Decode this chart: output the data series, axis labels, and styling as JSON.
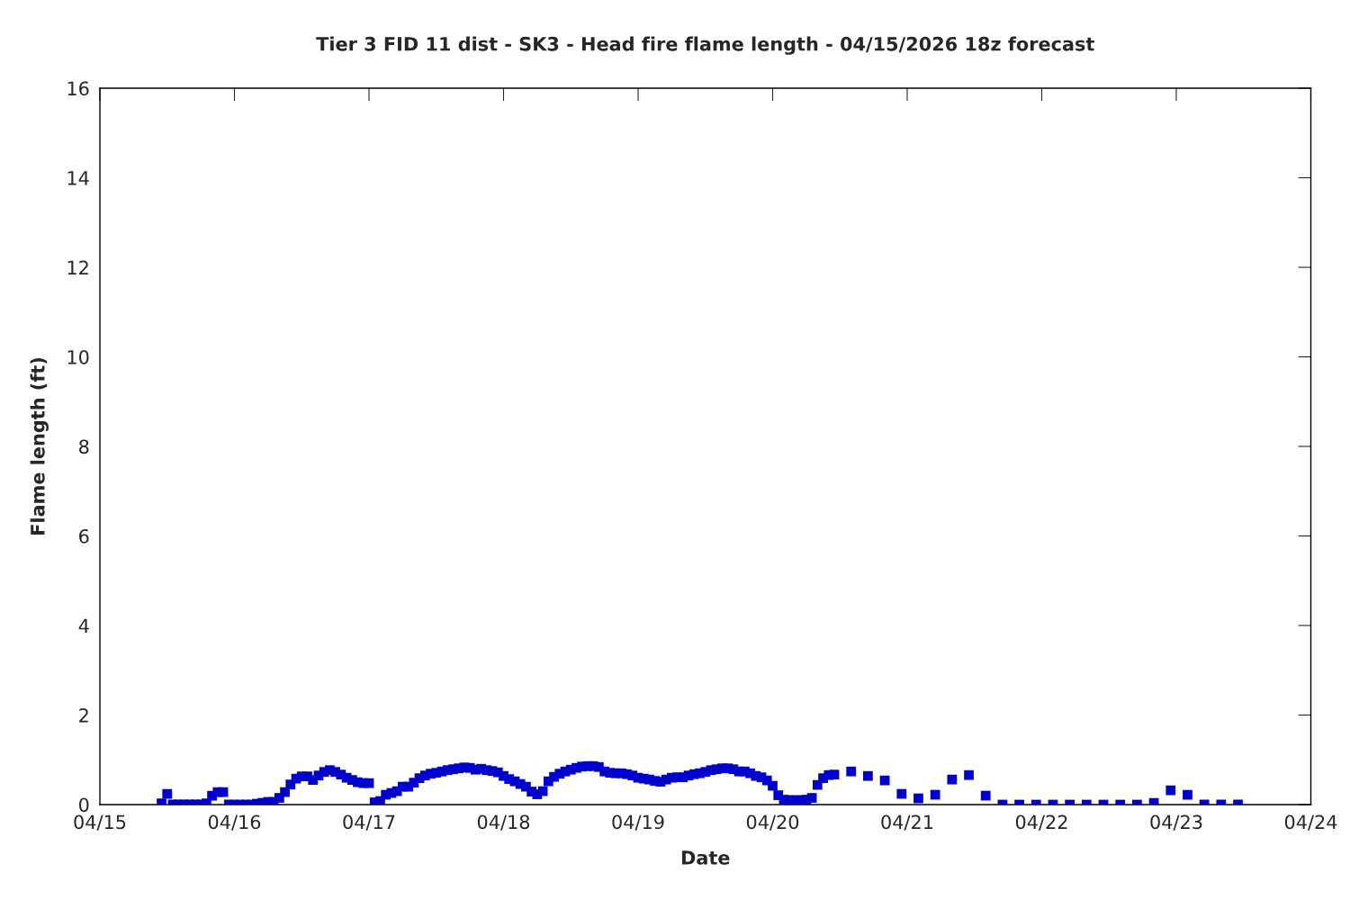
{
  "chart_data": {
    "type": "scatter",
    "title": "Tier 3 FID 11 dist - SK3 - Head fire flame length - 04/15/2026 18z forecast",
    "xlabel": "Date",
    "ylabel": "Flame length (ft)",
    "marker": "square",
    "grid": false,
    "legend": false,
    "xlim": [
      "2026-04-15",
      "2026-04-24"
    ],
    "xticks": [
      {
        "value": "2026-04-15",
        "label": "04/15"
      },
      {
        "value": "2026-04-16",
        "label": "04/16"
      },
      {
        "value": "2026-04-17",
        "label": "04/17"
      },
      {
        "value": "2026-04-18",
        "label": "04/18"
      },
      {
        "value": "2026-04-19",
        "label": "04/19"
      },
      {
        "value": "2026-04-20",
        "label": "04/20"
      },
      {
        "value": "2026-04-21",
        "label": "04/21"
      },
      {
        "value": "2026-04-22",
        "label": "04/22"
      },
      {
        "value": "2026-04-23",
        "label": "04/23"
      },
      {
        "value": "2026-04-24",
        "label": "04/24"
      }
    ],
    "ylim": [
      0,
      16
    ],
    "yticks": [
      0,
      2,
      4,
      6,
      8,
      10,
      12,
      14,
      16
    ],
    "series": [
      {
        "color": "#0000cc",
        "x": [
          "2026-04-15T11:00",
          "2026-04-15T12:00",
          "2026-04-15T13:00",
          "2026-04-15T14:00",
          "2026-04-15T15:00",
          "2026-04-15T16:00",
          "2026-04-15T17:00",
          "2026-04-15T18:00",
          "2026-04-15T19:00",
          "2026-04-15T20:00",
          "2026-04-15T21:00",
          "2026-04-15T22:00",
          "2026-04-15T23:00",
          "2026-04-16T00:00",
          "2026-04-16T01:00",
          "2026-04-16T02:00",
          "2026-04-16T03:00",
          "2026-04-16T04:00",
          "2026-04-16T05:00",
          "2026-04-16T06:00",
          "2026-04-16T07:00",
          "2026-04-16T08:00",
          "2026-04-16T09:00",
          "2026-04-16T10:00",
          "2026-04-16T11:00",
          "2026-04-16T12:00",
          "2026-04-16T13:00",
          "2026-04-16T14:00",
          "2026-04-16T15:00",
          "2026-04-16T16:00",
          "2026-04-16T17:00",
          "2026-04-16T18:00",
          "2026-04-16T19:00",
          "2026-04-16T20:00",
          "2026-04-16T21:00",
          "2026-04-16T22:00",
          "2026-04-16T23:00",
          "2026-04-17T00:00",
          "2026-04-17T01:00",
          "2026-04-17T02:00",
          "2026-04-17T03:00",
          "2026-04-17T04:00",
          "2026-04-17T05:00",
          "2026-04-17T06:00",
          "2026-04-17T07:00",
          "2026-04-17T08:00",
          "2026-04-17T09:00",
          "2026-04-17T10:00",
          "2026-04-17T11:00",
          "2026-04-17T12:00",
          "2026-04-17T13:00",
          "2026-04-17T14:00",
          "2026-04-17T15:00",
          "2026-04-17T16:00",
          "2026-04-17T17:00",
          "2026-04-17T18:00",
          "2026-04-17T19:00",
          "2026-04-17T20:00",
          "2026-04-17T21:00",
          "2026-04-17T22:00",
          "2026-04-17T23:00",
          "2026-04-18T00:00",
          "2026-04-18T01:00",
          "2026-04-18T02:00",
          "2026-04-18T03:00",
          "2026-04-18T04:00",
          "2026-04-18T05:00",
          "2026-04-18T06:00",
          "2026-04-18T07:00",
          "2026-04-18T08:00",
          "2026-04-18T09:00",
          "2026-04-18T10:00",
          "2026-04-18T11:00",
          "2026-04-18T12:00",
          "2026-04-18T13:00",
          "2026-04-18T14:00",
          "2026-04-18T15:00",
          "2026-04-18T16:00",
          "2026-04-18T17:00",
          "2026-04-18T18:00",
          "2026-04-18T19:00",
          "2026-04-18T20:00",
          "2026-04-18T21:00",
          "2026-04-18T22:00",
          "2026-04-18T23:00",
          "2026-04-19T00:00",
          "2026-04-19T01:00",
          "2026-04-19T02:00",
          "2026-04-19T03:00",
          "2026-04-19T04:00",
          "2026-04-19T05:00",
          "2026-04-19T06:00",
          "2026-04-19T07:00",
          "2026-04-19T08:00",
          "2026-04-19T09:00",
          "2026-04-19T10:00",
          "2026-04-19T11:00",
          "2026-04-19T12:00",
          "2026-04-19T13:00",
          "2026-04-19T14:00",
          "2026-04-19T15:00",
          "2026-04-19T16:00",
          "2026-04-19T17:00",
          "2026-04-19T18:00",
          "2026-04-19T19:00",
          "2026-04-19T20:00",
          "2026-04-19T21:00",
          "2026-04-19T22:00",
          "2026-04-19T23:00",
          "2026-04-20T00:00",
          "2026-04-20T01:00",
          "2026-04-20T02:00",
          "2026-04-20T03:00",
          "2026-04-20T04:00",
          "2026-04-20T05:00",
          "2026-04-20T06:00",
          "2026-04-20T07:00",
          "2026-04-20T08:00",
          "2026-04-20T09:00",
          "2026-04-20T10:00",
          "2026-04-20T11:00",
          "2026-04-20T14:00",
          "2026-04-20T17:00",
          "2026-04-20T20:00",
          "2026-04-20T23:00",
          "2026-04-21T02:00",
          "2026-04-21T05:00",
          "2026-04-21T08:00",
          "2026-04-21T11:00",
          "2026-04-21T14:00",
          "2026-04-21T17:00",
          "2026-04-21T20:00",
          "2026-04-21T23:00",
          "2026-04-22T02:00",
          "2026-04-22T05:00",
          "2026-04-22T08:00",
          "2026-04-22T11:00",
          "2026-04-22T14:00",
          "2026-04-22T17:00",
          "2026-04-22T20:00",
          "2026-04-22T23:00",
          "2026-04-23T02:00",
          "2026-04-23T05:00",
          "2026-04-23T08:00",
          "2026-04-23T11:00"
        ],
        "values": [
          0.03,
          0.24,
          0,
          0,
          0,
          0,
          0,
          0,
          0.03,
          0.2,
          0.28,
          0.28,
          0,
          0,
          0,
          0,
          0,
          0.02,
          0.04,
          0.06,
          0.06,
          0.15,
          0.28,
          0.45,
          0.58,
          0.63,
          0.63,
          0.55,
          0.65,
          0.73,
          0.77,
          0.73,
          0.67,
          0.6,
          0.55,
          0.5,
          0.48,
          0.48,
          0.05,
          0.08,
          0.22,
          0.26,
          0.3,
          0.4,
          0.4,
          0.49,
          0.59,
          0.65,
          0.69,
          0.71,
          0.74,
          0.77,
          0.79,
          0.81,
          0.83,
          0.82,
          0.78,
          0.8,
          0.77,
          0.75,
          0.72,
          0.64,
          0.57,
          0.52,
          0.46,
          0.4,
          0.29,
          0.23,
          0.3,
          0.52,
          0.62,
          0.69,
          0.74,
          0.78,
          0.82,
          0.85,
          0.86,
          0.86,
          0.84,
          0.74,
          0.71,
          0.7,
          0.7,
          0.68,
          0.65,
          0.6,
          0.58,
          0.56,
          0.53,
          0.51,
          0.56,
          0.6,
          0.61,
          0.61,
          0.65,
          0.68,
          0.7,
          0.73,
          0.77,
          0.79,
          0.81,
          0.81,
          0.79,
          0.74,
          0.74,
          0.7,
          0.64,
          0.61,
          0.54,
          0.42,
          0.21,
          0.11,
          0.1,
          0.1,
          0.1,
          0.11,
          0.15,
          0.44,
          0.59,
          0.66,
          0.67,
          0.74,
          0.64,
          0.54,
          0.24,
          0.14,
          0.22,
          0.56,
          0.66,
          0.2,
          0,
          0,
          0,
          0,
          0,
          0,
          0,
          0,
          0,
          0.04,
          0.32,
          0.22,
          0,
          0,
          0
        ]
      }
    ]
  }
}
